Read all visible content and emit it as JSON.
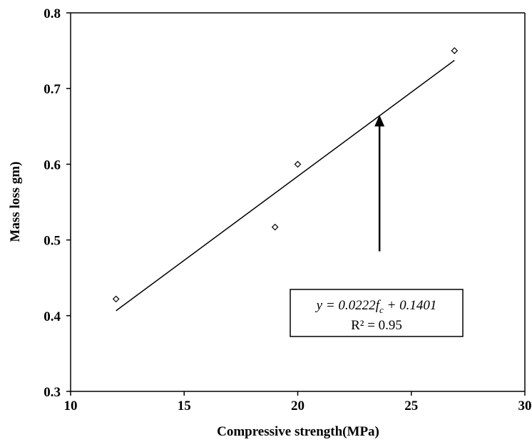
{
  "chart_data": {
    "type": "scatter",
    "xlabel": "Compressive strength(MPa)",
    "ylabel": "Mass loss gm)",
    "xlim": [
      10,
      30
    ],
    "ylim": [
      0.3,
      0.8
    ],
    "xticks": [
      10,
      15,
      20,
      25,
      30
    ],
    "yticks": [
      0.3,
      0.4,
      0.5,
      0.6,
      0.7,
      0.8
    ],
    "xtick_labels": [
      "10",
      "15",
      "20",
      "25",
      "30"
    ],
    "ytick_labels": [
      "0.3",
      "0.4",
      "0.5",
      "0.6",
      "0.7",
      "0.8"
    ],
    "grid": false,
    "series": [
      {
        "marker": "diamond",
        "x": [
          12,
          19,
          20,
          26.9
        ],
        "y": [
          0.422,
          0.517,
          0.6,
          0.75
        ]
      }
    ],
    "trendline": {
      "type": "linear",
      "slope": 0.0222,
      "intercept": 0.1401,
      "x_range": [
        12,
        26.9
      ]
    },
    "annotation": {
      "equation": {
        "lhs": "y = 0.0222",
        "var": "f",
        "sub": "c",
        "rhs": " + 0.1401"
      },
      "r2": "R² = 0.95",
      "arrow_target": [
        23.6,
        0.665
      ],
      "arrow_tail": [
        23.6,
        0.485
      ]
    }
  }
}
